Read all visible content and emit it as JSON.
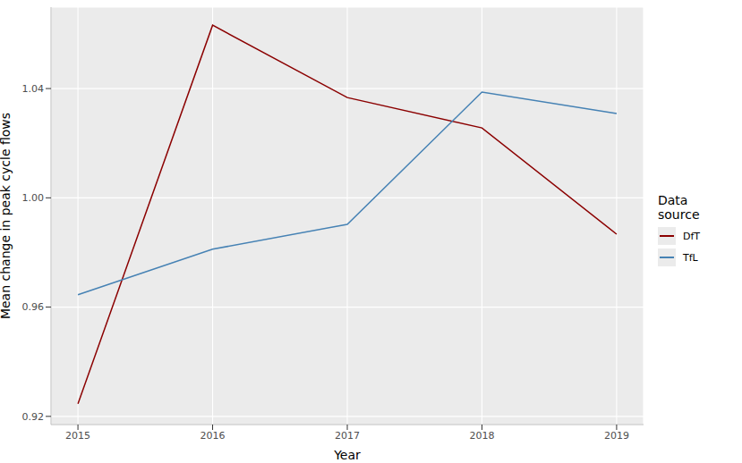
{
  "chart_data": {
    "type": "line",
    "x_label": "Year",
    "y_label": "Mean change in peak cycle flows",
    "legend_title": "Data source",
    "x": [
      2015,
      2016,
      2017,
      2018,
      2019
    ],
    "series": [
      {
        "name": "DfT",
        "color": "#8B0000",
        "values": [
          0.9246,
          1.0632,
          1.0367,
          1.0256,
          0.9867
        ]
      },
      {
        "name": "TfL",
        "color": "#4682B4",
        "values": [
          0.9645,
          0.9812,
          0.9903,
          1.0387,
          1.0309
        ]
      }
    ],
    "xlim": [
      2014.8,
      2019.2
    ],
    "xticks": [
      2015,
      2016,
      2017,
      2018,
      2019
    ],
    "ylim": [
      0.917,
      1.0698
    ],
    "yticks": [
      0.92,
      0.96,
      {
        "value": 1,
        "label": "1.00"
      },
      1.04
    ],
    "grid": true,
    "legend": "right"
  }
}
